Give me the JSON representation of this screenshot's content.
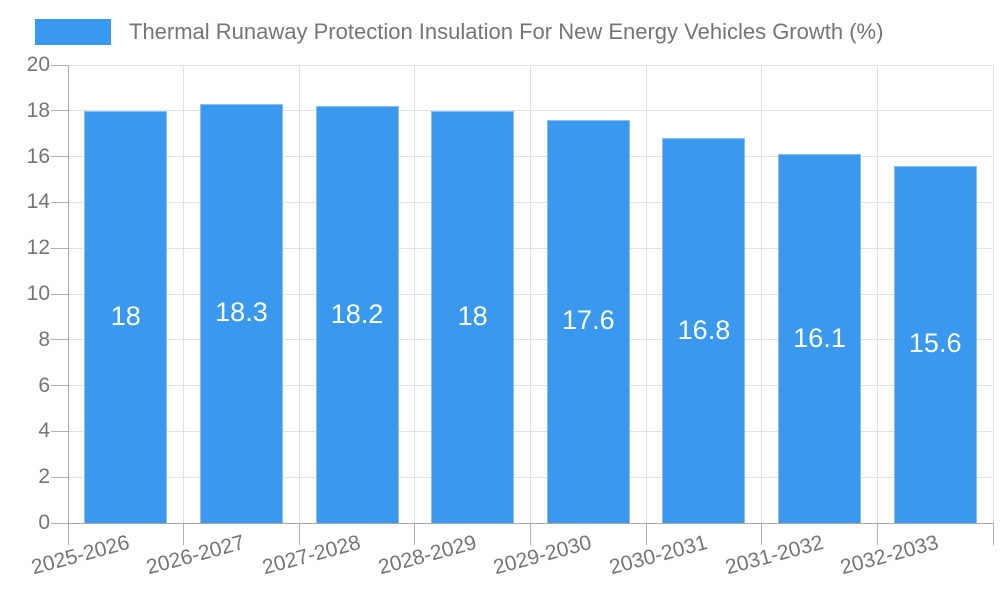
{
  "legend": {
    "label": "Thermal Runaway Protection Insulation For New Energy Vehicles Growth (%)"
  },
  "chart_data": {
    "type": "bar",
    "title": "Thermal Runaway Protection Insulation For New Energy Vehicles Growth (%)",
    "categories": [
      "2025-2026",
      "2026-2027",
      "2027-2028",
      "2028-2029",
      "2029-2030",
      "2030-2031",
      "2031-2032",
      "2032-2033"
    ],
    "values": [
      18,
      18.3,
      18.2,
      18,
      17.6,
      16.8,
      16.1,
      15.6
    ],
    "bar_labels": [
      "18",
      "18.3",
      "18.2",
      "18",
      "17.6",
      "16.8",
      "16.1",
      "15.6"
    ],
    "xlabel": "",
    "ylabel": "",
    "ylim": [
      0,
      20
    ],
    "yticks": [
      0,
      2,
      4,
      6,
      8,
      10,
      12,
      14,
      16,
      18,
      20
    ],
    "grid": true,
    "legend_position": "top-left",
    "x_label_rotation_deg": -15,
    "colors": {
      "bar_fill": "#3a99ee",
      "bar_border": "#8abdf2",
      "grid": "#e2e2e2",
      "axis": "#a8a8a8",
      "tick": "#b0b0b0",
      "text": "#757575",
      "bar_label": "#ffffff",
      "background": "#ffffff"
    }
  }
}
